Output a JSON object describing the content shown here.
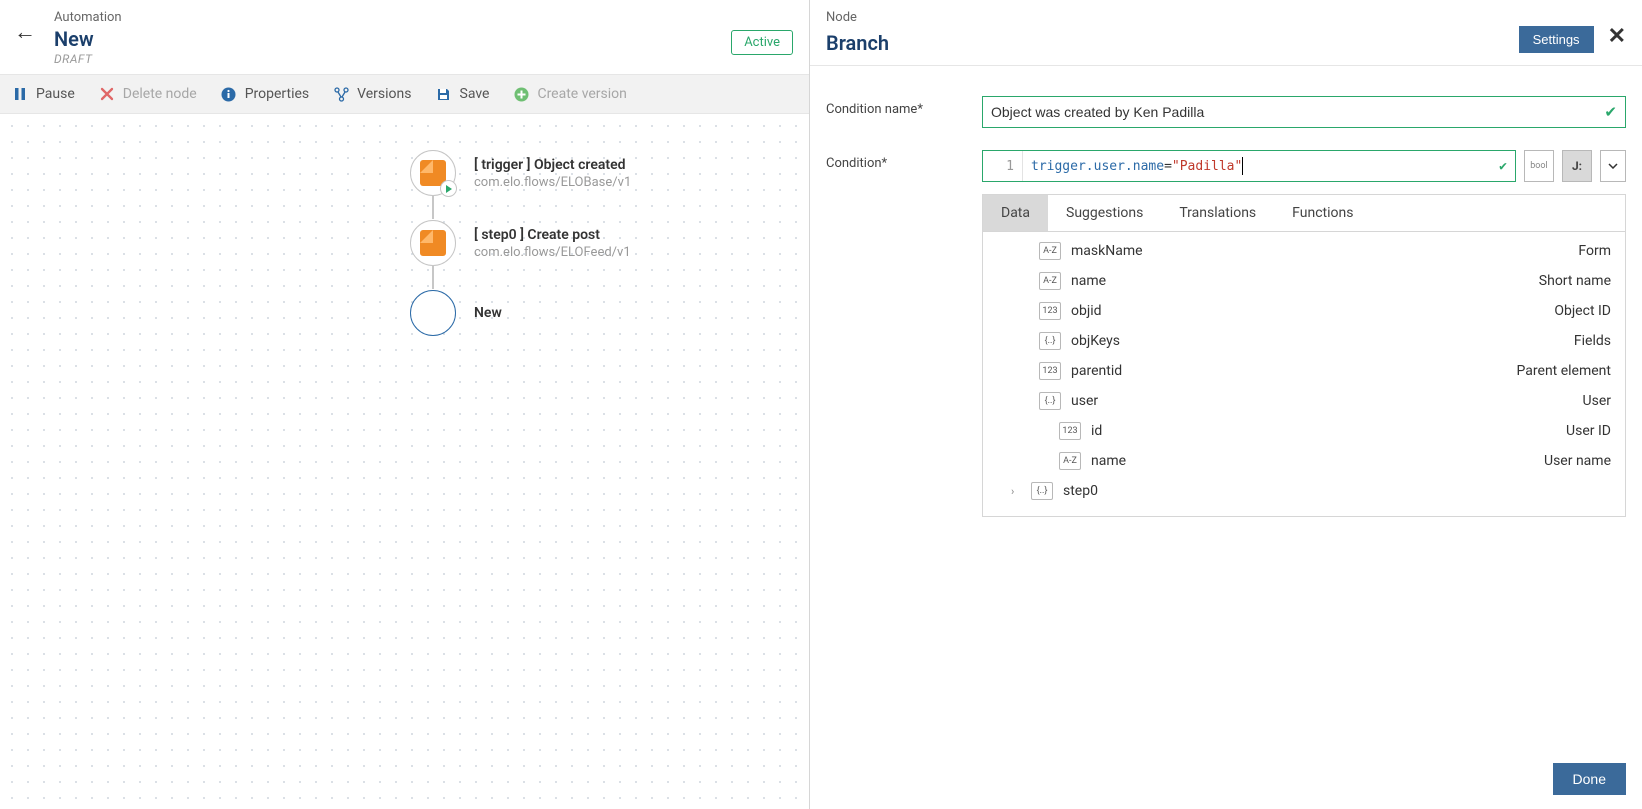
{
  "left": {
    "header": {
      "breadcrumb": "Automation",
      "title": "New",
      "statusLabel": "DRAFT",
      "activeBadge": "Active"
    },
    "toolbar": {
      "pause": "Pause",
      "deleteNode": "Delete node",
      "properties": "Properties",
      "versions": "Versions",
      "save": "Save",
      "createVersion": "Create version"
    },
    "flow": {
      "trigger": {
        "title": "[ trigger ] Object created",
        "sub": "com.elo.flows/ELOBase/v1"
      },
      "step0": {
        "title": "[ step0 ] Create post",
        "sub": "com.elo.flows/ELOFeed/v1"
      },
      "newNode": {
        "title": "New"
      }
    }
  },
  "right": {
    "header": {
      "breadcrumb": "Node",
      "title": "Branch",
      "settings": "Settings"
    },
    "form": {
      "conditionNameLabel": "Condition name*",
      "conditionNameValue": "Object was created by Ken Padilla",
      "conditionLabel": "Condition*",
      "condition": {
        "lineNumber": "1",
        "property": "trigger.user.name",
        "equals": "=",
        "value": "\"Padilla\"",
        "modeBool": "bool",
        "modeJs": "J:"
      }
    },
    "suggest": {
      "tabs": {
        "data": "Data",
        "suggestions": "Suggestions",
        "translations": "Translations",
        "functions": "Functions"
      },
      "items": [
        {
          "indent": 1,
          "type": "A-Z",
          "key": "maskName",
          "desc": "Form"
        },
        {
          "indent": 1,
          "type": "A-Z",
          "key": "name",
          "desc": "Short name"
        },
        {
          "indent": 1,
          "type": "123",
          "key": "objid",
          "desc": "Object ID"
        },
        {
          "indent": 1,
          "type": "{..}",
          "key": "objKeys",
          "desc": "Fields"
        },
        {
          "indent": 1,
          "type": "123",
          "key": "parentid",
          "desc": "Parent element"
        },
        {
          "indent": 1,
          "type": "{..}",
          "key": "user",
          "desc": "User"
        },
        {
          "indent": 2,
          "type": "123",
          "key": "id",
          "desc": "User ID"
        },
        {
          "indent": 2,
          "type": "A-Z",
          "key": "name",
          "desc": "User name"
        },
        {
          "indent": "step",
          "type": "{..}",
          "key": "step0",
          "desc": "",
          "expand": true
        }
      ]
    },
    "footer": {
      "done": "Done"
    }
  },
  "colors": {
    "primary": "#3b6a9a",
    "accentTitle": "#1b3f6b",
    "success": "#2aa76b",
    "orange": "#f08a24",
    "mutedText": "#999",
    "toolbarBg": "#f2f2f2",
    "border": "#d6d6d6"
  }
}
